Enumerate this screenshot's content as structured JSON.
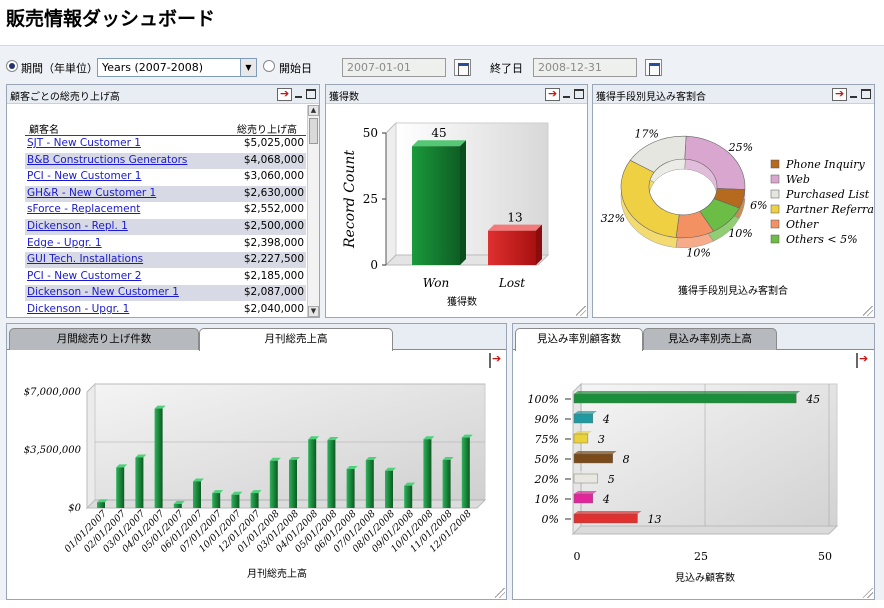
{
  "page": {
    "title": "販売情報ダッシュボード"
  },
  "filter": {
    "period_label": "期間（年単位）",
    "period_value": "Years (2007-2008)",
    "start_label": "開始日",
    "start_value": "2007-01-01",
    "end_label": "終了日",
    "end_value": "2008-12-31"
  },
  "customer_sales": {
    "title": "顧客ごとの総売り上げ高",
    "col_name": "顧客名",
    "col_total": "総売り上げ高",
    "rows": [
      {
        "name": "SJT - New Customer 1",
        "total": "$5,025,000"
      },
      {
        "name": "B&B Constructions Generators",
        "total": "$4,068,000"
      },
      {
        "name": "PCI - New Customer 1",
        "total": "$3,060,000"
      },
      {
        "name": "GH&R - New Customer 1",
        "total": "$2,630,000"
      },
      {
        "name": "sForce - Replacement",
        "total": "$2,552,000"
      },
      {
        "name": "Dickenson - Repl. 1",
        "total": "$2,500,000"
      },
      {
        "name": "Edge - Upgr. 1",
        "total": "$2,398,000"
      },
      {
        "name": "GUI Tech. Installations",
        "total": "$2,227,500"
      },
      {
        "name": "PCI - New Customer 2",
        "total": "$2,185,000"
      },
      {
        "name": "Dickenson - New Customer 1",
        "total": "$2,087,000"
      },
      {
        "name": "Dickenson - Upgr. 1",
        "total": "$2,040,000"
      }
    ]
  },
  "won_lost": {
    "title": "獲得数",
    "chart_data": {
      "type": "bar",
      "categories": [
        "Won",
        "Lost"
      ],
      "values": [
        45,
        13
      ],
      "ylabel": "Record Count",
      "xlabel": "獲得数",
      "yticks": [
        "0",
        "25",
        "50"
      ],
      "ylim": [
        0,
        50
      ],
      "colors": [
        "#1a9a3c",
        "#e03030"
      ]
    }
  },
  "lead_source": {
    "title": "獲得手段別見込み客割合",
    "chart_data": {
      "type": "pie",
      "xlabel": "獲得手段別見込み客割合",
      "labels": [
        "Phone Inquiry",
        "Web",
        "Purchased List",
        "Partner Referral",
        "Other",
        "Others < 5%"
      ],
      "slices": [
        {
          "name": "Web",
          "pct": 25,
          "label": "25%",
          "color": "#d9a6cf"
        },
        {
          "name": "Phone Inquiry",
          "pct": 6,
          "label": "6%",
          "color": "#b56a1e"
        },
        {
          "name": "Others < 5%",
          "pct": 10,
          "label": "10%",
          "color": "#6cbd45"
        },
        {
          "name": "Other",
          "pct": 10,
          "label": "10%",
          "color": "#f39163"
        },
        {
          "name": "Partner Referral",
          "pct": 32,
          "label": "32%",
          "color": "#f0d043"
        },
        {
          "name": "Purchased List",
          "pct": 17,
          "label": "17%",
          "color": "#e6e6e0"
        }
      ]
    }
  },
  "monthly": {
    "tab1": "月間総売り上げ件数",
    "tab2": "月刊総売上高",
    "chart_data": {
      "type": "bar",
      "xlabel": "月刊総売上高",
      "yticks": [
        "$0",
        "$3,500,000",
        "$7,000,000"
      ],
      "ylim": [
        0,
        7000000
      ],
      "categories": [
        "01/01/2007",
        "02/01/2007",
        "03/01/2007",
        "04/01/2007",
        "05/01/2007",
        "06/01/2007",
        "07/01/2007",
        "10/01/2007",
        "12/01/2007",
        "01/01/2008",
        "03/01/2008",
        "04/01/2008",
        "05/01/2008",
        "06/01/2008",
        "07/01/2008",
        "08/01/2008",
        "09/01/2008",
        "10/01/2008",
        "11/01/2008",
        "12/01/2008"
      ],
      "values": [
        350000,
        2450000,
        3050000,
        6000000,
        250000,
        1600000,
        900000,
        800000,
        900000,
        2850000,
        2900000,
        4150000,
        4100000,
        2350000,
        2900000,
        2250000,
        1350000,
        4150000,
        2900000,
        4250000
      ],
      "color": "#1a8f3a"
    }
  },
  "probability": {
    "tab1": "見込み率別顧客数",
    "tab2": "見込み率別売上高",
    "chart_data": {
      "type": "bar",
      "orientation": "horizontal",
      "xlabel": "見込み顧客数",
      "xticks": [
        "0",
        "25",
        "50"
      ],
      "xlim": [
        0,
        50
      ],
      "categories": [
        "100%",
        "90%",
        "75%",
        "50%",
        "20%",
        "10%",
        "0%"
      ],
      "values": [
        45,
        4,
        3,
        8,
        5,
        4,
        13
      ],
      "colors": [
        "#1a8f3a",
        "#1e9aa0",
        "#ead23a",
        "#7a4a1a",
        "#e8e8e0",
        "#e2259a",
        "#e03030"
      ]
    }
  }
}
